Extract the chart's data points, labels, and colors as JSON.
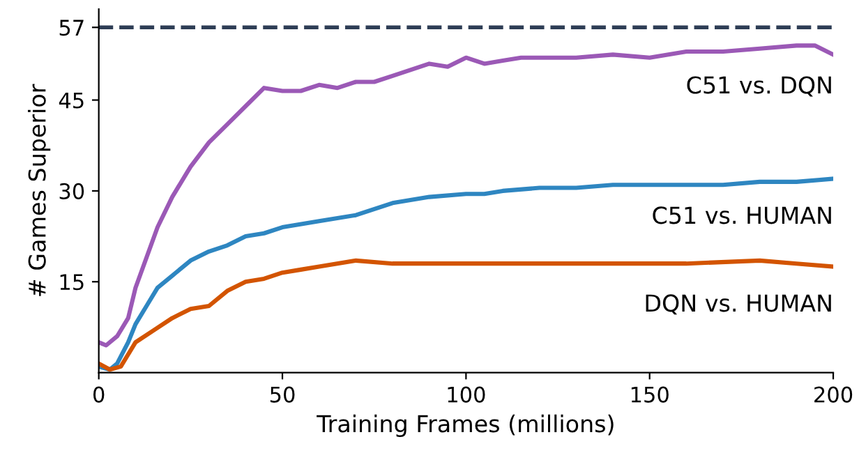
{
  "chart_data": {
    "type": "line",
    "xlabel": "Training Frames (millions)",
    "ylabel": "# Games Superior",
    "xlim": [
      0,
      200
    ],
    "ylim": [
      0,
      60
    ],
    "xticks": [
      0,
      50,
      100,
      150,
      200
    ],
    "yticks": [
      15,
      30,
      45,
      57
    ],
    "grid": false,
    "legend": false,
    "line_style": "solid",
    "marker": "none",
    "ref_lines": [
      {
        "axis": "y",
        "value": 57,
        "color": "#2e3d55",
        "line_style": "dashed"
      }
    ],
    "series": [
      {
        "name": "C51 vs. DQN",
        "color": "#9b59b6",
        "x": [
          0,
          2,
          5,
          8,
          10,
          13,
          16,
          20,
          25,
          30,
          35,
          40,
          45,
          50,
          55,
          60,
          65,
          70,
          75,
          80,
          85,
          90,
          95,
          100,
          105,
          110,
          115,
          120,
          130,
          140,
          150,
          160,
          170,
          180,
          190,
          195,
          200
        ],
        "values": [
          5,
          4.5,
          6,
          9,
          14,
          19,
          24,
          29,
          34,
          38,
          41,
          44,
          47,
          46.5,
          46.5,
          47.5,
          47,
          48,
          48,
          49,
          50,
          51,
          50.5,
          52,
          51,
          51.5,
          52,
          52,
          52,
          52.5,
          52,
          53,
          53,
          53.5,
          54,
          54,
          52.5
        ]
      },
      {
        "name": "C51 vs. HUMAN",
        "color": "#2e86c1",
        "x": [
          0,
          3,
          5,
          8,
          10,
          13,
          16,
          20,
          25,
          30,
          35,
          40,
          45,
          50,
          60,
          70,
          80,
          90,
          100,
          105,
          110,
          120,
          130,
          140,
          150,
          160,
          170,
          180,
          190,
          200
        ],
        "values": [
          1,
          0.5,
          1.5,
          5,
          8,
          11,
          14,
          16,
          18.5,
          20,
          21,
          22.5,
          23,
          24,
          25,
          26,
          28,
          29,
          29.5,
          29.5,
          30,
          30.5,
          30.5,
          31,
          31,
          31,
          31,
          31.5,
          31.5,
          32
        ]
      },
      {
        "name": "DQN vs. HUMAN",
        "color": "#d35400",
        "x": [
          0,
          3,
          6,
          8,
          10,
          15,
          20,
          25,
          30,
          35,
          40,
          45,
          50,
          55,
          60,
          70,
          80,
          90,
          100,
          120,
          140,
          160,
          180,
          190,
          200
        ],
        "values": [
          1.5,
          0.5,
          1,
          3,
          5,
          7,
          9,
          10.5,
          11,
          13.5,
          15,
          15.5,
          16.5,
          17,
          17.5,
          18.5,
          18,
          18,
          18,
          18,
          18,
          18,
          18.5,
          18,
          17.5
        ]
      }
    ]
  }
}
